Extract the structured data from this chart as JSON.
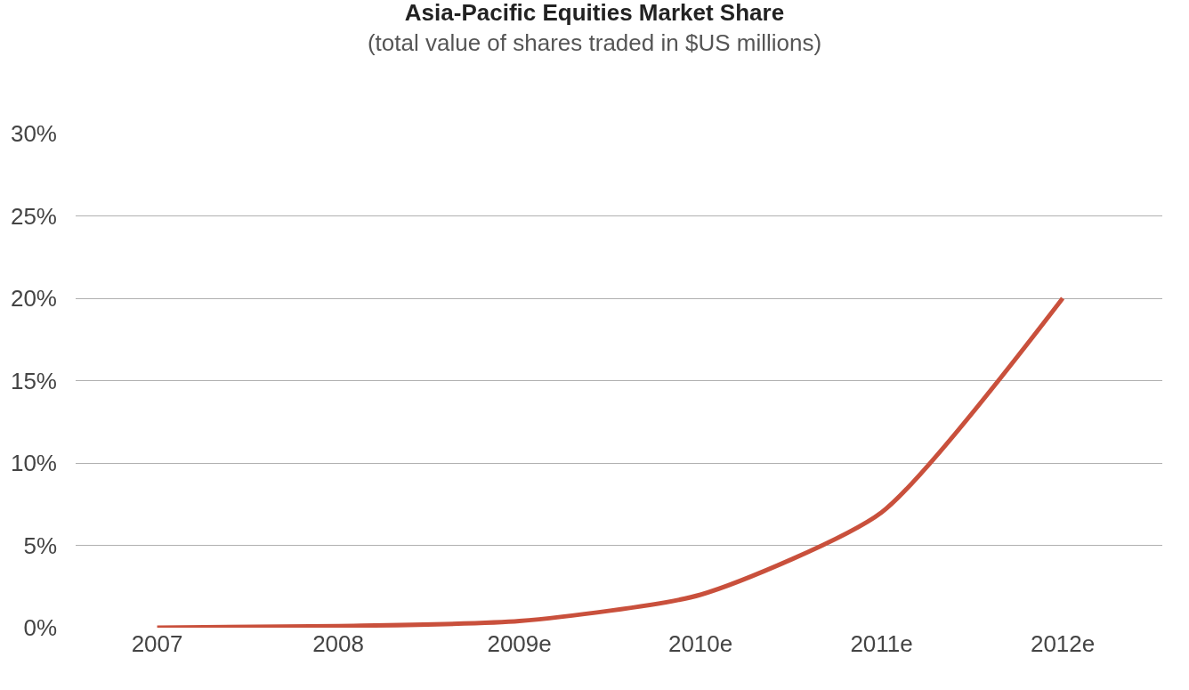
{
  "chart_data": {
    "type": "line",
    "title": "Asia-Pacific Equities Market Share",
    "subtitle": "(total value of shares traded in $US millions)",
    "categories": [
      "2007",
      "2008",
      "2009e",
      "2010e",
      "2011e",
      "2012e"
    ],
    "series": [
      {
        "color": "#c9503c",
        "values": [
          0,
          0.1,
          0.4,
          2,
          7,
          20
        ]
      }
    ],
    "ylim": [
      0,
      30
    ],
    "yticks": [
      {
        "value": 0,
        "label": "0%"
      },
      {
        "value": 5,
        "label": "5%"
      },
      {
        "value": 10,
        "label": "10%"
      },
      {
        "value": 15,
        "label": "15%"
      },
      {
        "value": 20,
        "label": "20%"
      },
      {
        "value": 25,
        "label": "25%"
      },
      {
        "value": 30,
        "label": "30%"
      }
    ],
    "grid": "y",
    "marker": "none",
    "line_style": "solid",
    "legend": false
  }
}
